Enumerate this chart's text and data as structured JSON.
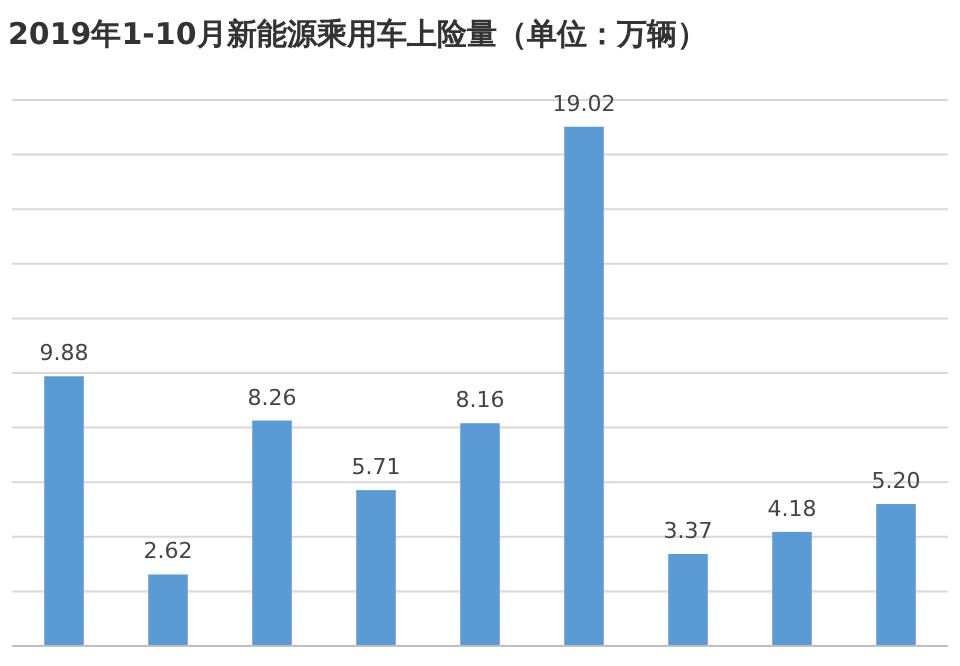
{
  "chart_data": {
    "type": "bar",
    "title": "2019年1-10月新能源乘用车上险量（单位：万辆）",
    "categories": [
      null,
      null,
      null,
      null,
      null,
      null,
      null,
      null,
      null
    ],
    "values": [
      9.88,
      2.62,
      8.26,
      5.71,
      8.16,
      19.02,
      3.37,
      4.18,
      5.2
    ],
    "value_labels": [
      "9.88",
      "2.62",
      "8.26",
      "5.71",
      "8.16",
      "19.02",
      "3.37",
      "4.18",
      "5.20"
    ],
    "color": "#5b9bd5",
    "ylim": [
      0,
      20
    ],
    "yticks": [
      {
        "value": 0,
        "label": null
      },
      {
        "value": 2,
        "label": null
      },
      {
        "value": 4,
        "label": null
      },
      {
        "value": 6,
        "label": null
      },
      {
        "value": 8,
        "label": null
      },
      {
        "value": 10,
        "label": null
      },
      {
        "value": 12,
        "label": null
      },
      {
        "value": 14,
        "label": null
      },
      {
        "value": 16,
        "label": null
      },
      {
        "value": 18,
        "label": null
      },
      {
        "value": 20,
        "label": null
      }
    ],
    "grid": "y"
  }
}
